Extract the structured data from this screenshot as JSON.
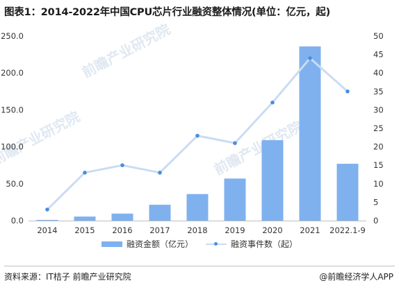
{
  "title": "图表1：2014-2022年中国CPU芯片行业融资整体情况(单位：亿元，起)",
  "watermark": "前瞻产业研究院",
  "source": "资料来源：IT桔子 前瞻产业研究院",
  "brand": "@前瞻经济学人APP",
  "colors": {
    "bar": "#7fb1ee",
    "line": "#c9dcf3",
    "marker": "#4a8de0",
    "axis": "#bfbfbf",
    "text": "#333333"
  },
  "chart_data": {
    "type": "bar",
    "categories": [
      "2014",
      "2015",
      "2016",
      "2017",
      "2018",
      "2019",
      "2020",
      "2021",
      "2022.1-9"
    ],
    "series": [
      {
        "name": "融资金额（亿元）",
        "type": "bar",
        "axis": "left",
        "values": [
          1.0,
          5.5,
          9.5,
          21.5,
          36.0,
          57.0,
          109.0,
          236.0,
          77.0
        ]
      },
      {
        "name": "融资事件数（起）",
        "type": "line",
        "axis": "right",
        "values": [
          3,
          13,
          15,
          13,
          23,
          21,
          32,
          44,
          35
        ]
      }
    ],
    "y_left": {
      "ylim": [
        0,
        250
      ],
      "ticks": [
        "0.0",
        "50.0",
        "100.0",
        "150.0",
        "200.0",
        "250.0"
      ]
    },
    "y_right": {
      "ylim": [
        0,
        50
      ],
      "ticks": [
        "0",
        "5",
        "10",
        "15",
        "20",
        "25",
        "30",
        "35",
        "40",
        "45",
        "50"
      ]
    },
    "grid": false,
    "legend": "bottom"
  }
}
